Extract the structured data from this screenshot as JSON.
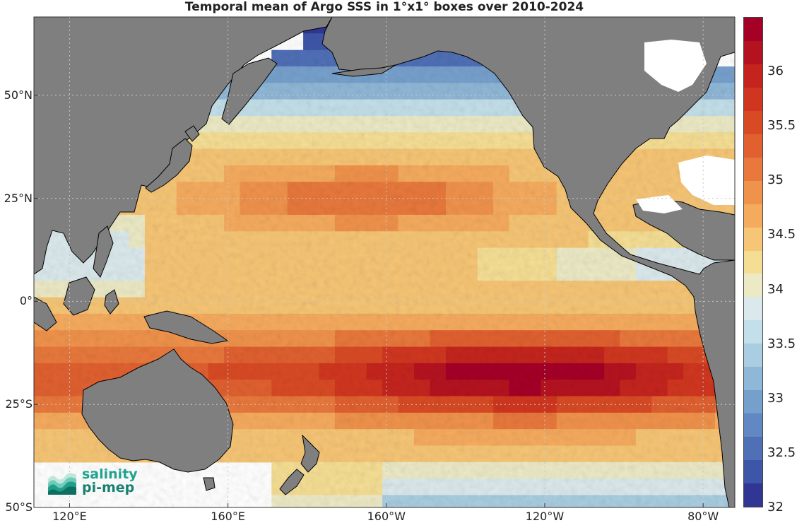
{
  "title": "Temporal mean of Argo SSS in 1°x1° boxes over 2010-2024",
  "map": {
    "variable": "Sea Surface Salinity (Argo)",
    "colors": {
      "land": "#7f7f7f",
      "ocean_blank": "#ffffff",
      "grid": "#c8c8c8",
      "coastline": "#000000"
    },
    "latitude_labels": [
      {
        "text": "50°N",
        "lat": 50
      },
      {
        "text": "25°N",
        "lat": 25
      },
      {
        "text": "0°",
        "lat": 0
      },
      {
        "text": "25°S",
        "lat": -25
      },
      {
        "text": "50°S",
        "lat": -50
      }
    ],
    "longitude_labels": [
      {
        "text": "120°E",
        "lon": 120
      },
      {
        "text": "160°E",
        "lon": 160
      },
      {
        "text": "160°W",
        "lon": -160
      },
      {
        "text": "120°W",
        "lon": -120
      },
      {
        "text": "80°W",
        "lon": -80
      }
    ],
    "lon_range": [
      111,
      288
    ],
    "lat_range": [
      -50,
      69
    ]
  },
  "colorbar": {
    "min": 32,
    "max": 36.5,
    "tick_labels": [
      "36",
      "35.5",
      "35",
      "34.5",
      "34",
      "33.5",
      "33",
      "32.5",
      "32"
    ],
    "tick_values": [
      36,
      35.5,
      35,
      34.5,
      34,
      33.5,
      33,
      32.5,
      32
    ],
    "colors": [
      "#a50026",
      "#b5121f",
      "#c4241d",
      "#d0361f",
      "#d84a24",
      "#e0602f",
      "#e8783c",
      "#ef924b",
      "#f5ab5e",
      "#f6c575",
      "#f5de94",
      "#ece9c5",
      "#dbe9ec",
      "#c3dfe9",
      "#a9cde1",
      "#8fb7d7",
      "#76a0cc",
      "#6188c2",
      "#4f6fb6",
      "#3e56a8",
      "#313695"
    ]
  },
  "logo": {
    "line1": "salinity",
    "line2": "pi-mep"
  }
}
